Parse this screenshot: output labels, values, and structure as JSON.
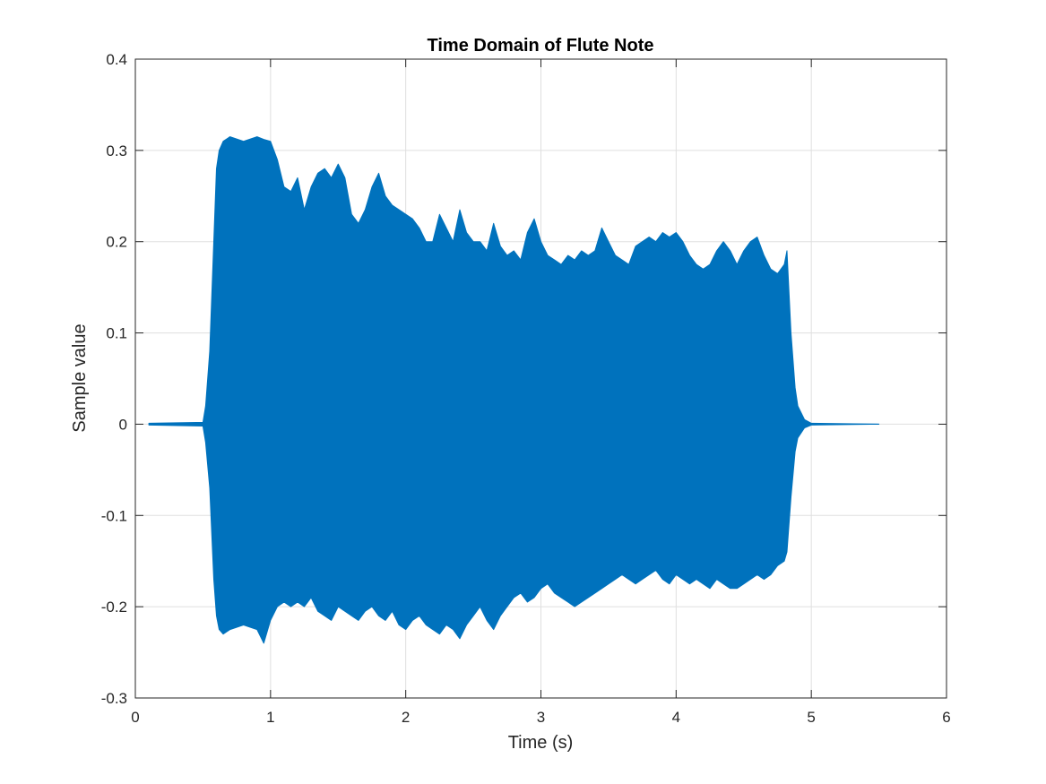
{
  "chart_data": {
    "type": "area",
    "title": "Time Domain of Flute Note",
    "xlabel": "Time (s)",
    "ylabel": "Sample value",
    "xlim": [
      0,
      6
    ],
    "ylim": [
      -0.3,
      0.4
    ],
    "xticks": [
      0,
      1,
      2,
      3,
      4,
      5,
      6
    ],
    "xtick_labels": [
      "0",
      "1",
      "2",
      "3",
      "4",
      "5",
      "6"
    ],
    "yticks": [
      -0.3,
      -0.2,
      -0.1,
      0,
      0.1,
      0.2,
      0.3,
      0.4
    ],
    "ytick_labels": [
      "-0.3",
      "-0.2",
      "-0.1",
      "0",
      "0.1",
      "0.2",
      "0.3",
      "0.4"
    ],
    "grid": true,
    "color": "#0072BD",
    "series": [
      {
        "x": [
          0.1,
          0.5,
          0.52,
          0.55,
          0.58,
          0.6,
          0.62,
          0.65,
          0.7,
          0.8,
          0.9,
          0.95,
          1.0,
          1.05,
          1.1,
          1.15,
          1.2,
          1.25,
          1.3,
          1.35,
          1.4,
          1.45,
          1.5,
          1.55,
          1.6,
          1.65,
          1.7,
          1.75,
          1.8,
          1.85,
          1.9,
          1.95,
          2.0,
          2.05,
          2.1,
          2.15,
          2.2,
          2.25,
          2.3,
          2.35,
          2.4,
          2.45,
          2.5,
          2.55,
          2.6,
          2.65,
          2.7,
          2.75,
          2.8,
          2.85,
          2.9,
          2.95,
          3.0,
          3.05,
          3.1,
          3.15,
          3.2,
          3.25,
          3.3,
          3.35,
          3.4,
          3.45,
          3.5,
          3.55,
          3.6,
          3.65,
          3.7,
          3.75,
          3.8,
          3.85,
          3.9,
          3.95,
          4.0,
          4.05,
          4.1,
          4.15,
          4.2,
          4.25,
          4.3,
          4.35,
          4.4,
          4.45,
          4.5,
          4.55,
          4.6,
          4.65,
          4.7,
          4.75,
          4.8,
          4.82,
          4.85,
          4.88,
          4.9,
          4.95,
          5.0,
          5.5
        ],
        "upper": [
          0.001,
          0.002,
          0.02,
          0.08,
          0.2,
          0.28,
          0.3,
          0.31,
          0.315,
          0.31,
          0.315,
          0.312,
          0.31,
          0.29,
          0.26,
          0.255,
          0.27,
          0.235,
          0.26,
          0.275,
          0.28,
          0.27,
          0.285,
          0.27,
          0.23,
          0.22,
          0.235,
          0.26,
          0.275,
          0.25,
          0.24,
          0.235,
          0.23,
          0.225,
          0.215,
          0.2,
          0.2,
          0.23,
          0.215,
          0.2,
          0.235,
          0.21,
          0.2,
          0.2,
          0.19,
          0.22,
          0.195,
          0.185,
          0.19,
          0.18,
          0.21,
          0.225,
          0.2,
          0.185,
          0.18,
          0.175,
          0.185,
          0.18,
          0.19,
          0.185,
          0.19,
          0.215,
          0.2,
          0.185,
          0.18,
          0.175,
          0.195,
          0.2,
          0.205,
          0.2,
          0.21,
          0.205,
          0.21,
          0.2,
          0.185,
          0.175,
          0.17,
          0.175,
          0.19,
          0.2,
          0.19,
          0.175,
          0.19,
          0.2,
          0.205,
          0.185,
          0.17,
          0.165,
          0.175,
          0.19,
          0.1,
          0.04,
          0.02,
          0.005,
          0.001,
          0.0
        ],
        "lower": [
          -0.001,
          -0.002,
          -0.02,
          -0.07,
          -0.17,
          -0.21,
          -0.225,
          -0.23,
          -0.225,
          -0.22,
          -0.225,
          -0.24,
          -0.215,
          -0.2,
          -0.195,
          -0.2,
          -0.195,
          -0.2,
          -0.19,
          -0.205,
          -0.21,
          -0.215,
          -0.2,
          -0.205,
          -0.21,
          -0.215,
          -0.205,
          -0.2,
          -0.21,
          -0.215,
          -0.205,
          -0.22,
          -0.225,
          -0.215,
          -0.21,
          -0.22,
          -0.225,
          -0.23,
          -0.22,
          -0.225,
          -0.235,
          -0.22,
          -0.21,
          -0.2,
          -0.215,
          -0.225,
          -0.21,
          -0.2,
          -0.19,
          -0.185,
          -0.195,
          -0.19,
          -0.18,
          -0.175,
          -0.185,
          -0.19,
          -0.195,
          -0.2,
          -0.195,
          -0.19,
          -0.185,
          -0.18,
          -0.175,
          -0.17,
          -0.165,
          -0.17,
          -0.175,
          -0.17,
          -0.165,
          -0.16,
          -0.17,
          -0.175,
          -0.165,
          -0.17,
          -0.175,
          -0.17,
          -0.175,
          -0.18,
          -0.17,
          -0.175,
          -0.18,
          -0.18,
          -0.175,
          -0.17,
          -0.165,
          -0.17,
          -0.165,
          -0.155,
          -0.15,
          -0.14,
          -0.08,
          -0.03,
          -0.015,
          -0.004,
          -0.001,
          0.0
        ]
      }
    ]
  }
}
